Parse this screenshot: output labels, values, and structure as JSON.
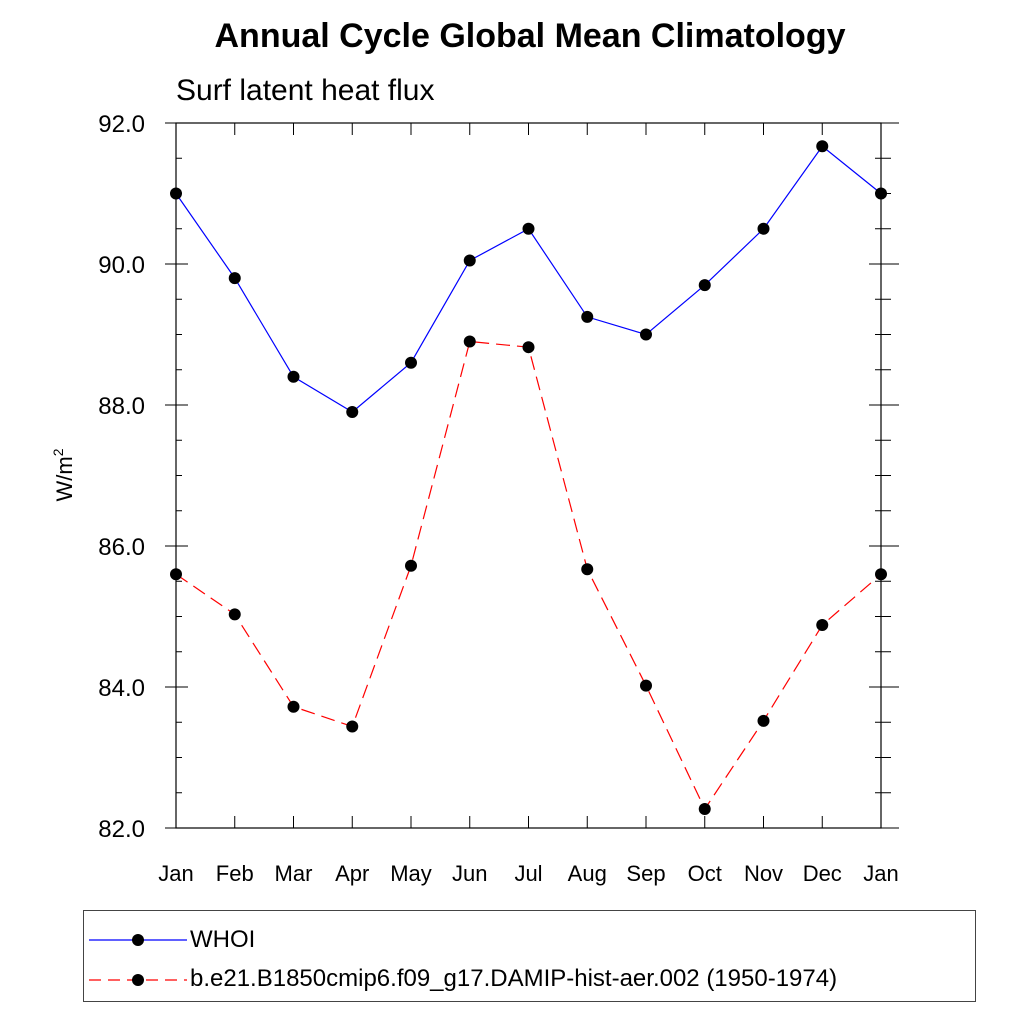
{
  "chart_data": {
    "type": "line",
    "title": "Annual Cycle Global Mean Climatology",
    "subtitle": "Surf latent heat flux",
    "ylabel": "W/m",
    "ylabel_superscript": "2",
    "xlabel": "",
    "categories": [
      "Jan",
      "Feb",
      "Mar",
      "Apr",
      "May",
      "Jun",
      "Jul",
      "Aug",
      "Sep",
      "Oct",
      "Nov",
      "Dec",
      "Jan"
    ],
    "ylim": [
      82.0,
      92.0
    ],
    "yticks": [
      "82.0",
      "84.0",
      "86.0",
      "88.0",
      "90.0",
      "92.0"
    ],
    "grid": false,
    "legend_position": "bottom",
    "series": [
      {
        "name": "WHOI",
        "color": "#0000ff",
        "dash": "solid",
        "values": [
          91.0,
          89.8,
          88.4,
          87.9,
          88.6,
          90.05,
          90.5,
          89.25,
          89.0,
          89.7,
          90.5,
          91.67,
          91.0
        ]
      },
      {
        "name": "b.e21.B1850cmip6.f09_g17.DAMIP-hist-aer.002 (1950-1974)",
        "color": "#ff0000",
        "dash": "dashed",
        "values": [
          85.6,
          85.03,
          83.72,
          83.44,
          85.72,
          88.9,
          88.82,
          85.67,
          84.02,
          82.27,
          83.52,
          84.88,
          85.6
        ]
      }
    ]
  }
}
